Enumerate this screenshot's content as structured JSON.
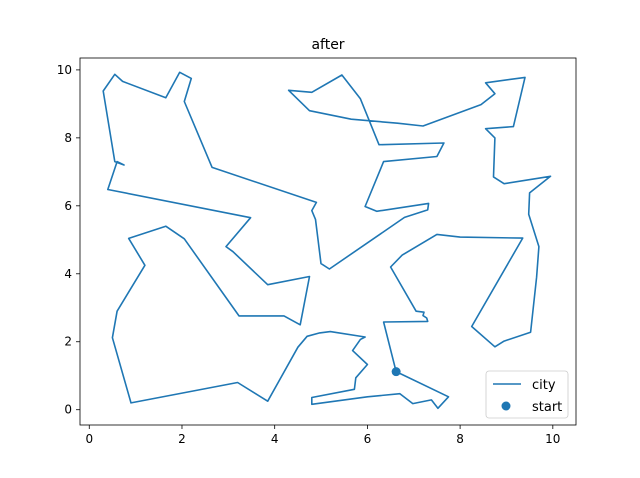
{
  "chart_data": {
    "type": "line",
    "title": "after",
    "xlabel": "",
    "ylabel": "",
    "xlim": [
      -0.2,
      10.5
    ],
    "ylim": [
      -0.45,
      10.35
    ],
    "xticks": [
      0,
      2,
      4,
      6,
      8,
      10
    ],
    "yticks": [
      0,
      2,
      4,
      6,
      8,
      10
    ],
    "grid": false,
    "legend_position": "lower-right",
    "series": [
      {
        "name": "city",
        "type": "line",
        "color": "#1f77b4",
        "points": [
          [
            6.62,
            1.12
          ],
          [
            7.75,
            0.38
          ],
          [
            7.52,
            0.04
          ],
          [
            7.38,
            0.29
          ],
          [
            6.98,
            0.18
          ],
          [
            6.7,
            0.47
          ],
          [
            6.0,
            0.38
          ],
          [
            4.8,
            0.16
          ],
          [
            4.8,
            0.36
          ],
          [
            5.72,
            0.6
          ],
          [
            5.75,
            0.94
          ],
          [
            6.0,
            1.33
          ],
          [
            5.68,
            1.74
          ],
          [
            5.85,
            2.07
          ],
          [
            5.95,
            2.14
          ],
          [
            5.2,
            2.3
          ],
          [
            4.97,
            2.26
          ],
          [
            4.7,
            2.16
          ],
          [
            4.5,
            1.84
          ],
          [
            3.85,
            0.25
          ],
          [
            3.2,
            0.8
          ],
          [
            0.9,
            0.2
          ],
          [
            0.5,
            2.12
          ],
          [
            0.6,
            2.9
          ],
          [
            1.2,
            4.25
          ],
          [
            0.85,
            5.04
          ],
          [
            1.65,
            5.4
          ],
          [
            2.05,
            5.03
          ],
          [
            3.23,
            2.76
          ],
          [
            4.2,
            2.76
          ],
          [
            4.55,
            2.5
          ],
          [
            4.75,
            3.92
          ],
          [
            3.85,
            3.68
          ],
          [
            3.1,
            4.65
          ],
          [
            2.95,
            4.8
          ],
          [
            3.48,
            5.65
          ],
          [
            0.4,
            6.48
          ],
          [
            0.6,
            7.3
          ],
          [
            0.75,
            7.2
          ],
          [
            0.55,
            7.3
          ],
          [
            0.3,
            9.38
          ],
          [
            0.55,
            9.87
          ],
          [
            0.72,
            9.66
          ],
          [
            1.65,
            9.18
          ],
          [
            1.95,
            9.93
          ],
          [
            2.2,
            9.75
          ],
          [
            2.05,
            9.07
          ],
          [
            2.65,
            7.13
          ],
          [
            4.9,
            6.1
          ],
          [
            4.8,
            5.86
          ],
          [
            4.88,
            5.6
          ],
          [
            5.0,
            4.3
          ],
          [
            5.18,
            4.14
          ],
          [
            6.8,
            5.66
          ],
          [
            7.3,
            5.88
          ],
          [
            7.32,
            6.07
          ],
          [
            6.2,
            5.84
          ],
          [
            5.95,
            5.98
          ],
          [
            6.35,
            7.3
          ],
          [
            7.5,
            7.45
          ],
          [
            7.65,
            7.85
          ],
          [
            6.25,
            7.8
          ],
          [
            5.85,
            9.15
          ],
          [
            5.45,
            9.85
          ],
          [
            4.8,
            9.34
          ],
          [
            4.3,
            9.4
          ],
          [
            4.75,
            8.8
          ],
          [
            5.65,
            8.55
          ],
          [
            6.65,
            8.43
          ],
          [
            7.2,
            8.35
          ],
          [
            8.45,
            8.98
          ],
          [
            8.75,
            9.3
          ],
          [
            8.55,
            9.62
          ],
          [
            9.4,
            9.78
          ],
          [
            9.15,
            8.33
          ],
          [
            8.55,
            8.27
          ],
          [
            8.75,
            8.0
          ],
          [
            8.72,
            6.85
          ],
          [
            8.95,
            6.65
          ],
          [
            9.95,
            6.87
          ],
          [
            9.5,
            6.38
          ],
          [
            9.48,
            5.75
          ],
          [
            9.7,
            4.8
          ],
          [
            9.65,
            3.9
          ],
          [
            9.52,
            2.28
          ],
          [
            8.95,
            2.02
          ],
          [
            8.75,
            1.85
          ],
          [
            8.25,
            2.45
          ],
          [
            9.35,
            5.05
          ],
          [
            8.0,
            5.08
          ],
          [
            7.5,
            5.16
          ],
          [
            6.75,
            4.55
          ],
          [
            6.5,
            4.2
          ],
          [
            7.05,
            2.9
          ],
          [
            7.22,
            2.87
          ],
          [
            7.2,
            2.77
          ],
          [
            7.28,
            2.7
          ],
          [
            7.3,
            2.6
          ],
          [
            6.35,
            2.58
          ],
          [
            6.62,
            1.12
          ]
        ]
      },
      {
        "name": "start",
        "type": "scatter",
        "color": "#1f77b4",
        "points": [
          [
            6.62,
            1.12
          ]
        ]
      }
    ]
  }
}
